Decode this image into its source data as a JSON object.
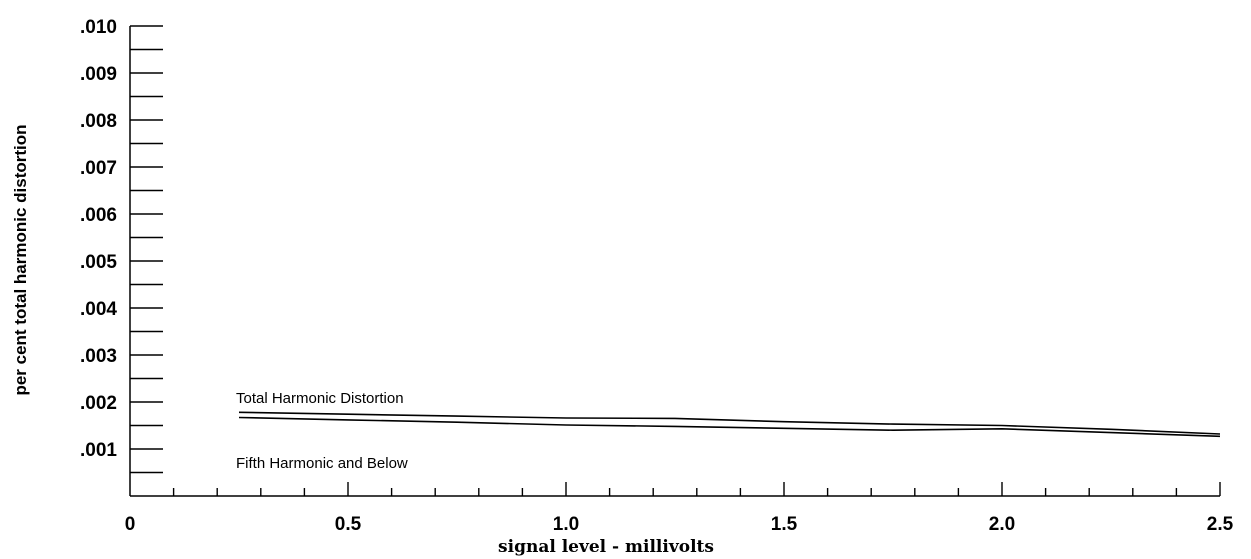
{
  "chart_data": {
    "type": "line",
    "xlabel": "signal level - millivolts",
    "ylabel": "per cent total harmonic distortion",
    "xlim": [
      0,
      2.5
    ],
    "ylim": [
      0,
      0.01
    ],
    "x_ticks": [
      "0",
      "0.5",
      "1.0",
      "1.5",
      "2.0",
      "2.5"
    ],
    "y_ticks": [
      ".001",
      ".002",
      ".003",
      ".004",
      ".005",
      ".006",
      ".007",
      ".008",
      ".009",
      ".010"
    ],
    "grid": false,
    "series": [
      {
        "name": "Total Harmonic Distortion",
        "x": [
          0.25,
          0.5,
          0.75,
          1.0,
          1.25,
          1.5,
          1.75,
          2.0,
          2.25,
          2.5
        ],
        "y": [
          0.00178,
          0.00174,
          0.0017,
          0.00166,
          0.00165,
          0.00158,
          0.00153,
          0.0015,
          0.00142,
          0.00132
        ]
      },
      {
        "name": "Fifth Harmonic and Below",
        "x": [
          0.25,
          0.5,
          0.75,
          1.0,
          1.25,
          1.5,
          1.75,
          2.0,
          2.25,
          2.5
        ],
        "y": [
          0.00167,
          0.00162,
          0.00157,
          0.00151,
          0.00148,
          0.00144,
          0.0014,
          0.00143,
          0.00135,
          0.00127
        ]
      }
    ],
    "annotations": [
      "Total Harmonic Distortion",
      "Fifth Harmonic and Below"
    ]
  }
}
